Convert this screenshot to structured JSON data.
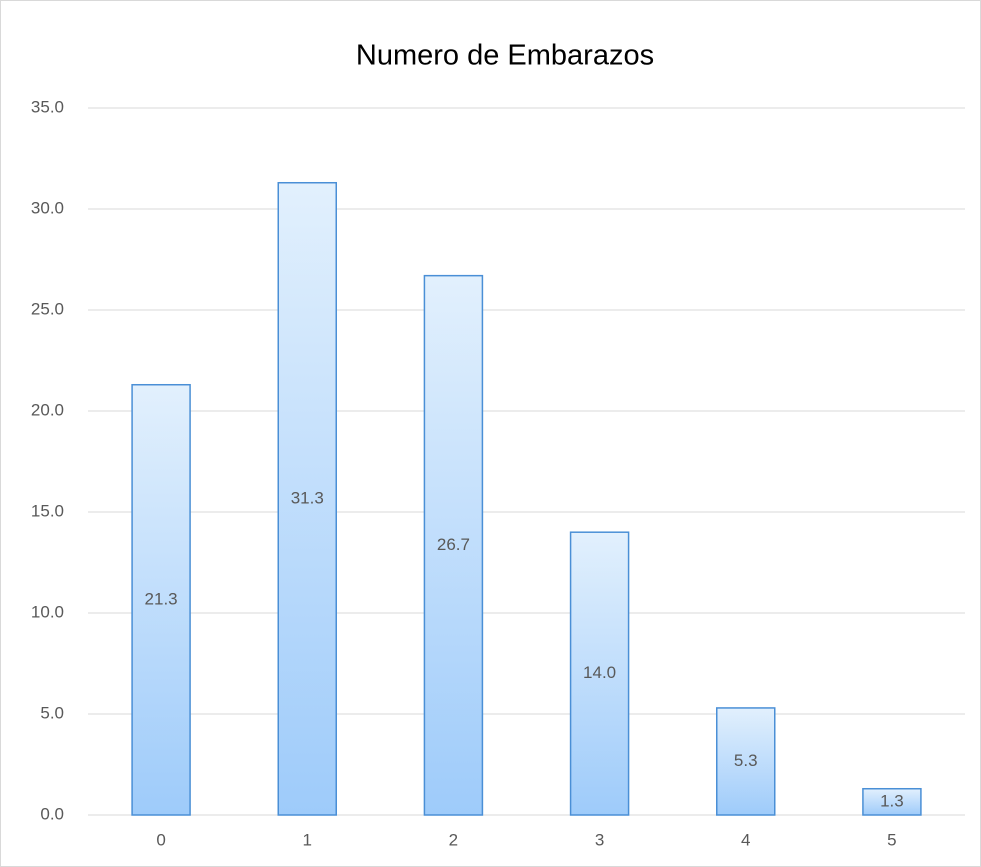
{
  "chart_data": {
    "type": "bar",
    "title": "Numero de Embarazos",
    "categories": [
      "0",
      "1",
      "2",
      "3",
      "4",
      "5"
    ],
    "values": [
      21.3,
      31.3,
      26.7,
      14.0,
      5.3,
      1.3
    ],
    "value_labels": [
      "21.3",
      "31.3",
      "26.7",
      "14.0",
      "5.3",
      "1.3"
    ],
    "color": "#9ecbfa",
    "edge_color": "#4a8fd6",
    "ylim": [
      0,
      35
    ],
    "yticks": [
      {
        "value": 0,
        "label": "0.0"
      },
      {
        "value": 5,
        "label": "5.0"
      },
      {
        "value": 10,
        "label": "10.0"
      },
      {
        "value": 15,
        "label": "15.0"
      },
      {
        "value": 20,
        "label": "20.0"
      },
      {
        "value": 25,
        "label": "25.0"
      },
      {
        "value": 30,
        "label": "30.0"
      },
      {
        "value": 35,
        "label": "35.0"
      }
    ],
    "grid": true
  }
}
